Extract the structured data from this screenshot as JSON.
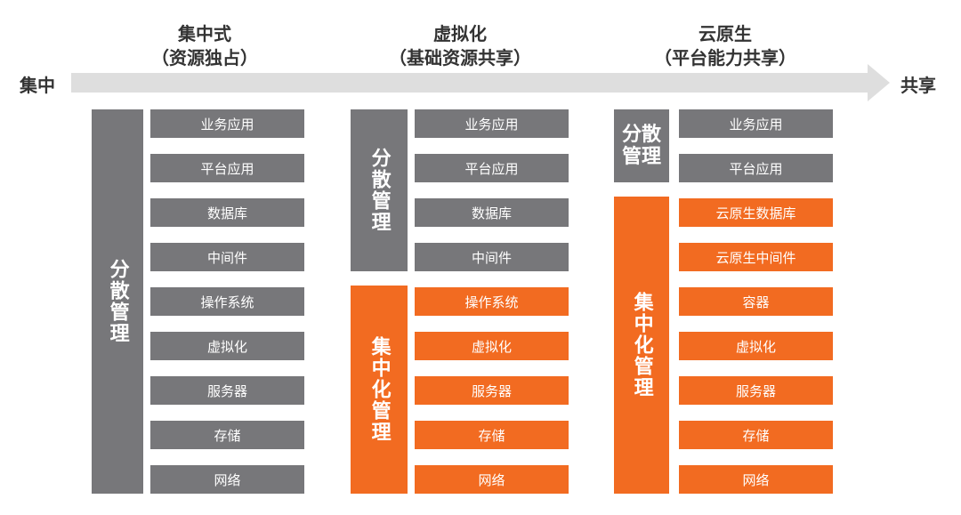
{
  "arrow": {
    "start": "集中",
    "end": "共享"
  },
  "columns": [
    {
      "title": "集中式",
      "subtitle": "（资源独占）",
      "blocks": [
        {
          "label": "分散管理",
          "color": "#77777a"
        }
      ],
      "layers": [
        {
          "label": "业务应用",
          "color": "#77777a"
        },
        {
          "label": "平台应用",
          "color": "#77777a"
        },
        {
          "label": "数据库",
          "color": "#77777a"
        },
        {
          "label": "中间件",
          "color": "#77777a"
        },
        {
          "label": "操作系统",
          "color": "#77777a"
        },
        {
          "label": "虚拟化",
          "color": "#77777a"
        },
        {
          "label": "服务器",
          "color": "#77777a"
        },
        {
          "label": "存储",
          "color": "#77777a"
        },
        {
          "label": "网络",
          "color": "#77777a"
        }
      ]
    },
    {
      "title": "虚拟化",
      "subtitle": "（基础资源共享）",
      "blocks": [
        {
          "label": "分散管理",
          "color": "#77777a"
        },
        {
          "label": "集中化管理",
          "color": "#f26b21"
        }
      ],
      "layers": [
        {
          "label": "业务应用",
          "color": "#77777a"
        },
        {
          "label": "平台应用",
          "color": "#77777a"
        },
        {
          "label": "数据库",
          "color": "#77777a"
        },
        {
          "label": "中间件",
          "color": "#77777a"
        },
        {
          "label": "操作系统",
          "color": "#f26b21"
        },
        {
          "label": "虚拟化",
          "color": "#f26b21"
        },
        {
          "label": "服务器",
          "color": "#f26b21"
        },
        {
          "label": "存储",
          "color": "#f26b21"
        },
        {
          "label": "网络",
          "color": "#f26b21"
        }
      ]
    },
    {
      "title": "云原生",
      "subtitle": "（平台能力共享）",
      "blocks": [
        {
          "label": "分散管理",
          "color": "#77777a"
        },
        {
          "label": "集中化管理",
          "color": "#f26b21"
        }
      ],
      "layers": [
        {
          "label": "业务应用",
          "color": "#77777a"
        },
        {
          "label": "平台应用",
          "color": "#77777a"
        },
        {
          "label": "云原生数据库",
          "color": "#f26b21"
        },
        {
          "label": "云原生中间件",
          "color": "#f26b21"
        },
        {
          "label": "容器",
          "color": "#f26b21"
        },
        {
          "label": "虚拟化",
          "color": "#f26b21"
        },
        {
          "label": "服务器",
          "color": "#f26b21"
        },
        {
          "label": "存储",
          "color": "#f26b21"
        },
        {
          "label": "网络",
          "color": "#f26b21"
        }
      ]
    }
  ]
}
